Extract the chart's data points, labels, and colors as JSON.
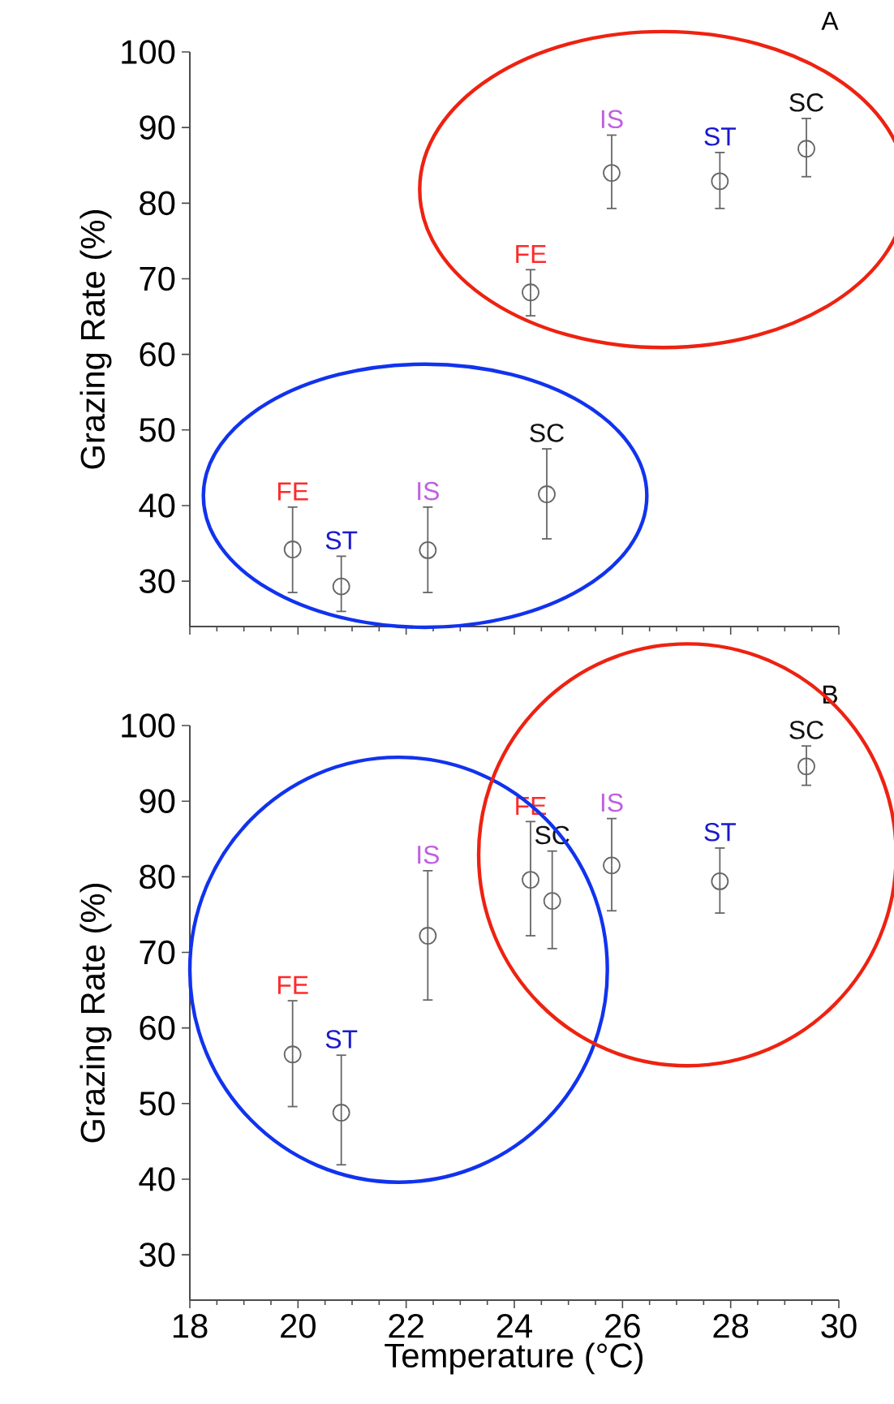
{
  "chart_data": [
    {
      "type": "scatter",
      "ylabel": "Grazing Rate (%)",
      "xlim": [
        18,
        30
      ],
      "xticks": [
        18,
        20,
        22,
        24,
        26,
        28,
        30
      ],
      "ylim": [
        24,
        100
      ],
      "yticks": [
        30,
        40,
        50,
        60,
        70,
        80,
        90,
        100
      ],
      "tick_labels": "y",
      "marker": "circle",
      "series": [
        {
          "color": "#666666",
          "x": [
            19.9,
            20.8,
            22.4,
            24.6,
            24.3,
            25.8,
            27.8,
            29.4
          ],
          "values": [
            34.2,
            29.3,
            34.1,
            41.5,
            68.2,
            84.0,
            82.9,
            87.2
          ],
          "errors": [
            [
              28.5,
              39.8
            ],
            [
              26.0,
              33.3
            ],
            [
              28.5,
              39.8
            ],
            [
              35.6,
              47.5
            ],
            [
              65.1,
              71.2
            ],
            [
              79.3,
              89.0
            ],
            [
              79.3,
              86.7
            ],
            [
              83.5,
              91.2
            ]
          ]
        }
      ],
      "annotations": [
        "A",
        {
          "text": "FE",
          "x": 19.9,
          "y": 34.2
        },
        {
          "text": "ST",
          "x": 20.8,
          "y": 29.3
        },
        {
          "text": "IS",
          "x": 22.4,
          "y": 34.1
        },
        {
          "text": "SC",
          "x": 24.6,
          "y": 41.5
        },
        {
          "text": "FE",
          "x": 24.3,
          "y": 68.2
        },
        {
          "text": "IS",
          "x": 25.8,
          "y": 84.0
        },
        {
          "text": "ST",
          "x": 27.8,
          "y": 82.9
        },
        {
          "text": "SC",
          "x": 29.4,
          "y": 87.2
        }
      ]
    },
    {
      "type": "scatter",
      "xlabel": "Temperature (°C)",
      "ylabel": "Grazing Rate (%)",
      "xlim": [
        18,
        30
      ],
      "xticks": [
        18,
        20,
        22,
        24,
        26,
        28,
        30
      ],
      "ylim": [
        24,
        100
      ],
      "yticks": [
        30,
        40,
        50,
        60,
        70,
        80,
        90,
        100
      ],
      "marker": "circle",
      "series": [
        {
          "color": "#666666",
          "x": [
            19.9,
            20.8,
            22.4,
            24.3,
            24.7,
            25.8,
            27.8,
            29.4
          ],
          "values": [
            56.5,
            48.8,
            72.2,
            79.6,
            76.8,
            81.5,
            79.4,
            94.6
          ],
          "errors": [
            [
              49.6,
              63.6
            ],
            [
              41.9,
              56.4
            ],
            [
              63.7,
              80.8
            ],
            [
              72.2,
              87.3
            ],
            [
              70.5,
              83.4
            ],
            [
              75.5,
              87.7
            ],
            [
              75.2,
              83.8
            ],
            [
              92.1,
              97.3
            ]
          ]
        }
      ],
      "annotations": [
        "B",
        {
          "text": "FE",
          "x": 19.9,
          "y": 56.5
        },
        {
          "text": "ST",
          "x": 20.8,
          "y": 48.8
        },
        {
          "text": "IS",
          "x": 22.4,
          "y": 72.2
        },
        {
          "text": "FE",
          "x": 24.3,
          "y": 79.6
        },
        {
          "text": "SC",
          "x": 24.7,
          "y": 76.8
        },
        {
          "text": "IS",
          "x": 25.8,
          "y": 81.5
        },
        {
          "text": "ST",
          "x": 27.8,
          "y": 79.4
        },
        {
          "text": "SC",
          "x": 29.4,
          "y": 94.6
        }
      ]
    }
  ]
}
